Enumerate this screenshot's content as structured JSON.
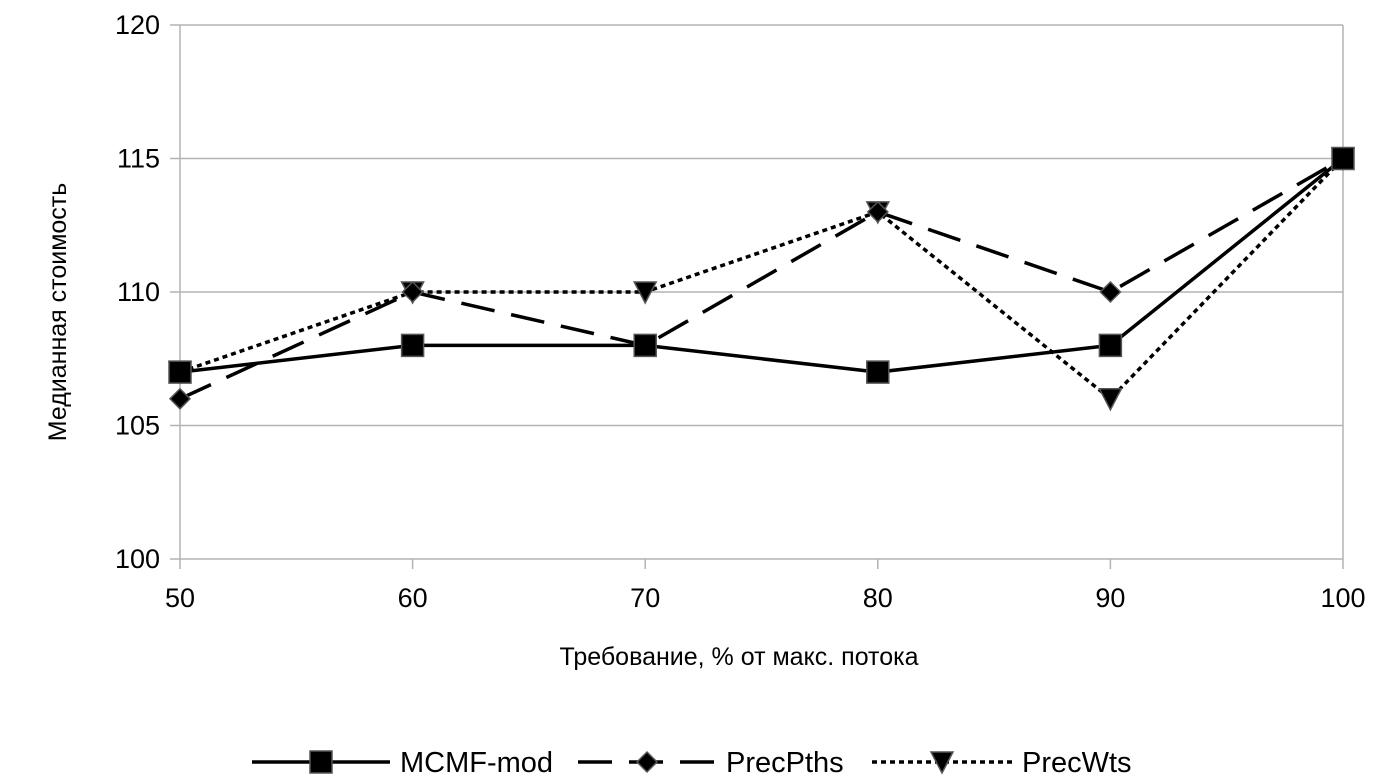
{
  "chart_data": {
    "type": "line",
    "title": "",
    "xlabel": "Требование, % от макс. потока",
    "ylabel": "Медианная стоимость",
    "x": [
      50,
      60,
      70,
      80,
      90,
      100
    ],
    "ylim": [
      100,
      120
    ],
    "yticks": [
      100,
      105,
      110,
      115,
      120
    ],
    "grid": true,
    "legend": "bottom",
    "series": [
      {
        "name": "MCMF-mod",
        "values": [
          107,
          108,
          108,
          107,
          108,
          115
        ],
        "line": "solid",
        "marker": "square",
        "color": "#000000"
      },
      {
        "name": "PrecPths",
        "values": [
          106,
          110,
          108,
          113,
          110,
          115
        ],
        "line": "dashed",
        "marker": "diamond",
        "color": "#000000"
      },
      {
        "name": "PrecWts",
        "values": [
          107,
          110,
          110,
          113,
          106,
          115
        ],
        "line": "dotted",
        "marker": "triangle-down",
        "color": "#000000"
      }
    ]
  }
}
